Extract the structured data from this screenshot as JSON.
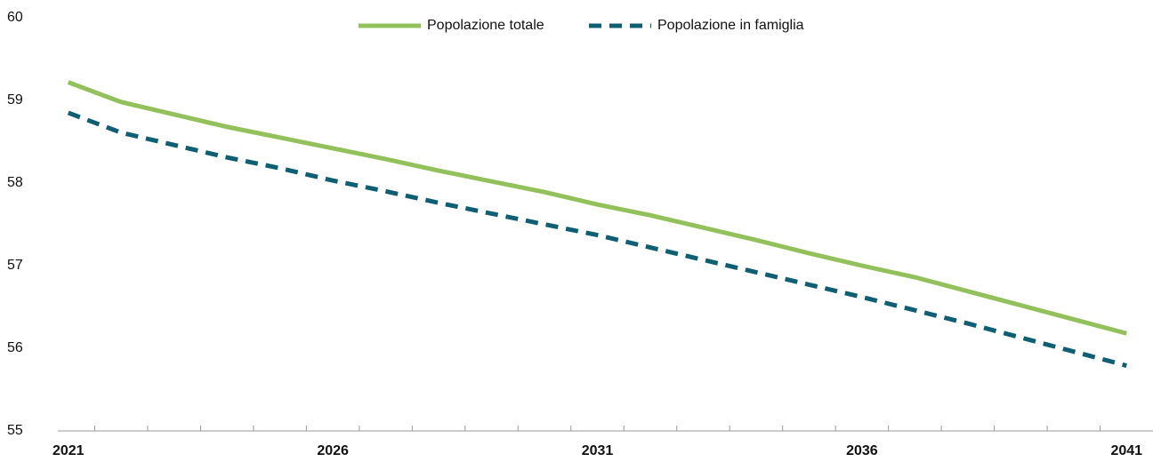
{
  "chart_data": {
    "type": "line",
    "categories": [
      "2021",
      null,
      null,
      null,
      null,
      "2026",
      null,
      null,
      null,
      null,
      "2031",
      null,
      null,
      null,
      null,
      "2036",
      null,
      null,
      null,
      null,
      "2041"
    ],
    "series": [
      {
        "name": "Popolazione totale",
        "color": "#92c05a",
        "style": "solid",
        "values": [
          59.22,
          58.98,
          58.83,
          58.68,
          58.55,
          58.42,
          58.29,
          58.15,
          58.02,
          57.89,
          57.74,
          57.61,
          57.46,
          57.31,
          57.15,
          57.0,
          56.86,
          56.69,
          56.52,
          56.35,
          56.18
        ]
      },
      {
        "name": "Popolazione in famiglia",
        "color": "#0f5f74",
        "style": "dashed",
        "values": [
          58.85,
          58.61,
          58.46,
          58.31,
          58.18,
          58.03,
          57.9,
          57.76,
          57.63,
          57.5,
          57.37,
          57.22,
          57.07,
          56.92,
          56.77,
          56.62,
          56.46,
          56.3,
          56.13,
          55.96,
          55.79
        ]
      }
    ],
    "ylim": [
      55,
      60
    ],
    "yticks": [
      55,
      56,
      57,
      58,
      59,
      60
    ],
    "grid": false,
    "legend": "top"
  }
}
